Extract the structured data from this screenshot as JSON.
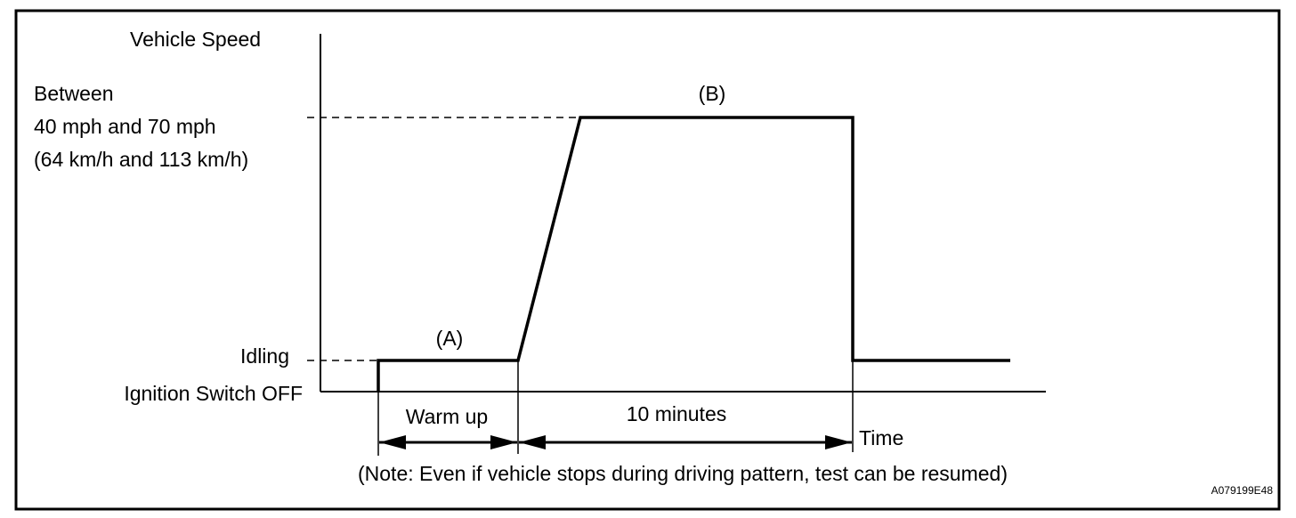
{
  "y_axis_label": "Vehicle Speed",
  "speed_range": [
    "Between",
    "40 mph and 70 mph",
    "(64 km/h and 113 km/h)"
  ],
  "idling_label": "Idling",
  "ignition_label": "Ignition Switch OFF",
  "phase_a_label": "(A)",
  "phase_b_label": "(B)",
  "warmup_label": "Warm up",
  "duration_label": "10 minutes",
  "x_axis_label": "Time",
  "note": "(Note: Even if vehicle stops during driving pattern, test can be resumed)",
  "figure_id": "A079199E48"
}
